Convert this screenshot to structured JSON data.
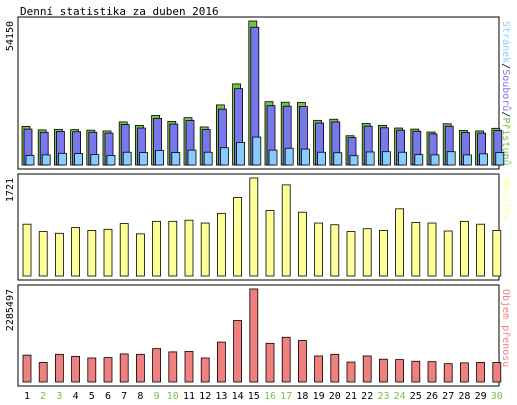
{
  "chart_data": {
    "type": "bar",
    "title": "Denní statistika za duben 2016",
    "colors": {
      "accesses": "#77c244",
      "files": "#7777ee",
      "pages": "#88ccff",
      "visits": "#ffff99",
      "traffic": "#f08080",
      "weekend_label": "#77c244",
      "weekday_label": "#000000",
      "panel_border": "#000000",
      "background": "#ffffff"
    },
    "categories": [
      "1",
      "2",
      "3",
      "4",
      "5",
      "6",
      "7",
      "8",
      "9",
      "10",
      "11",
      "12",
      "13",
      "14",
      "15",
      "16",
      "17",
      "18",
      "19",
      "20",
      "21",
      "22",
      "23",
      "24",
      "25",
      "26",
      "27",
      "28",
      "29",
      "30"
    ],
    "weekend_days": [
      "2",
      "3",
      "9",
      "10",
      "16",
      "17",
      "23",
      "24",
      "30"
    ],
    "panels": [
      {
        "id": "hits",
        "side_label": "Stránek/Souborů/Přístupů",
        "max_label": "54150",
        "ymax": 54150,
        "series": [
          {
            "name": "Přístupů",
            "key": "accesses",
            "values": [
              14500,
              13200,
              13400,
              13300,
              13100,
              12800,
              16200,
              14900,
              18600,
              16400,
              17800,
              14300,
              22600,
              30500,
              54150,
              23800,
              23600,
              23500,
              16800,
              17200,
              11000,
              15600,
              14900,
              13900,
              13500,
              12400,
              15500,
              13000,
              12800,
              13800
            ]
          },
          {
            "name": "Souborů",
            "key": "files",
            "values": [
              13500,
              12300,
              12600,
              12500,
              12300,
              12000,
              15200,
              13900,
              17500,
              15400,
              16700,
              13300,
              21000,
              28700,
              51800,
              22300,
              22100,
              22000,
              15800,
              16200,
              10300,
              14600,
              14000,
              13100,
              12700,
              11700,
              14600,
              12200,
              12000,
              13000
            ]
          },
          {
            "name": "Stránek",
            "key": "pages",
            "values": [
              3600,
              3800,
              4400,
              4300,
              3900,
              3600,
              4800,
              4700,
              5500,
              4700,
              5600,
              4800,
              6500,
              8500,
              10500,
              5600,
              6300,
              6000,
              4800,
              4600,
              3500,
              4900,
              5000,
              4800,
              3900,
              3800,
              5000,
              3800,
              4200,
              4700
            ]
          }
        ]
      },
      {
        "id": "visits",
        "side_label": "Návštěv",
        "max_label": "1721",
        "ymax": 1721,
        "series": [
          {
            "name": "Návštěv",
            "key": "visits",
            "values": [
              910,
              780,
              750,
              850,
              800,
              820,
              920,
              740,
              960,
              960,
              980,
              930,
              1100,
              1380,
              1721,
              1150,
              1600,
              1120,
              930,
              900,
              780,
              830,
              800,
              1180,
              940,
              930,
              790,
              960,
              910,
              800
            ]
          }
        ]
      },
      {
        "id": "traffic",
        "side_label": "Objem přenosu",
        "max_label": "2285497",
        "ymax": 2285497,
        "series": [
          {
            "name": "Objem přenosu",
            "key": "traffic",
            "values": [
              660000,
              480000,
              680000,
              630000,
              590000,
              600000,
              690000,
              680000,
              820000,
              740000,
              750000,
              590000,
              980000,
              1510000,
              2285497,
              950000,
              1100000,
              1020000,
              640000,
              680000,
              490000,
              640000,
              560000,
              550000,
              510000,
              500000,
              450000,
              470000,
              480000,
              480000
            ]
          }
        ]
      }
    ]
  }
}
